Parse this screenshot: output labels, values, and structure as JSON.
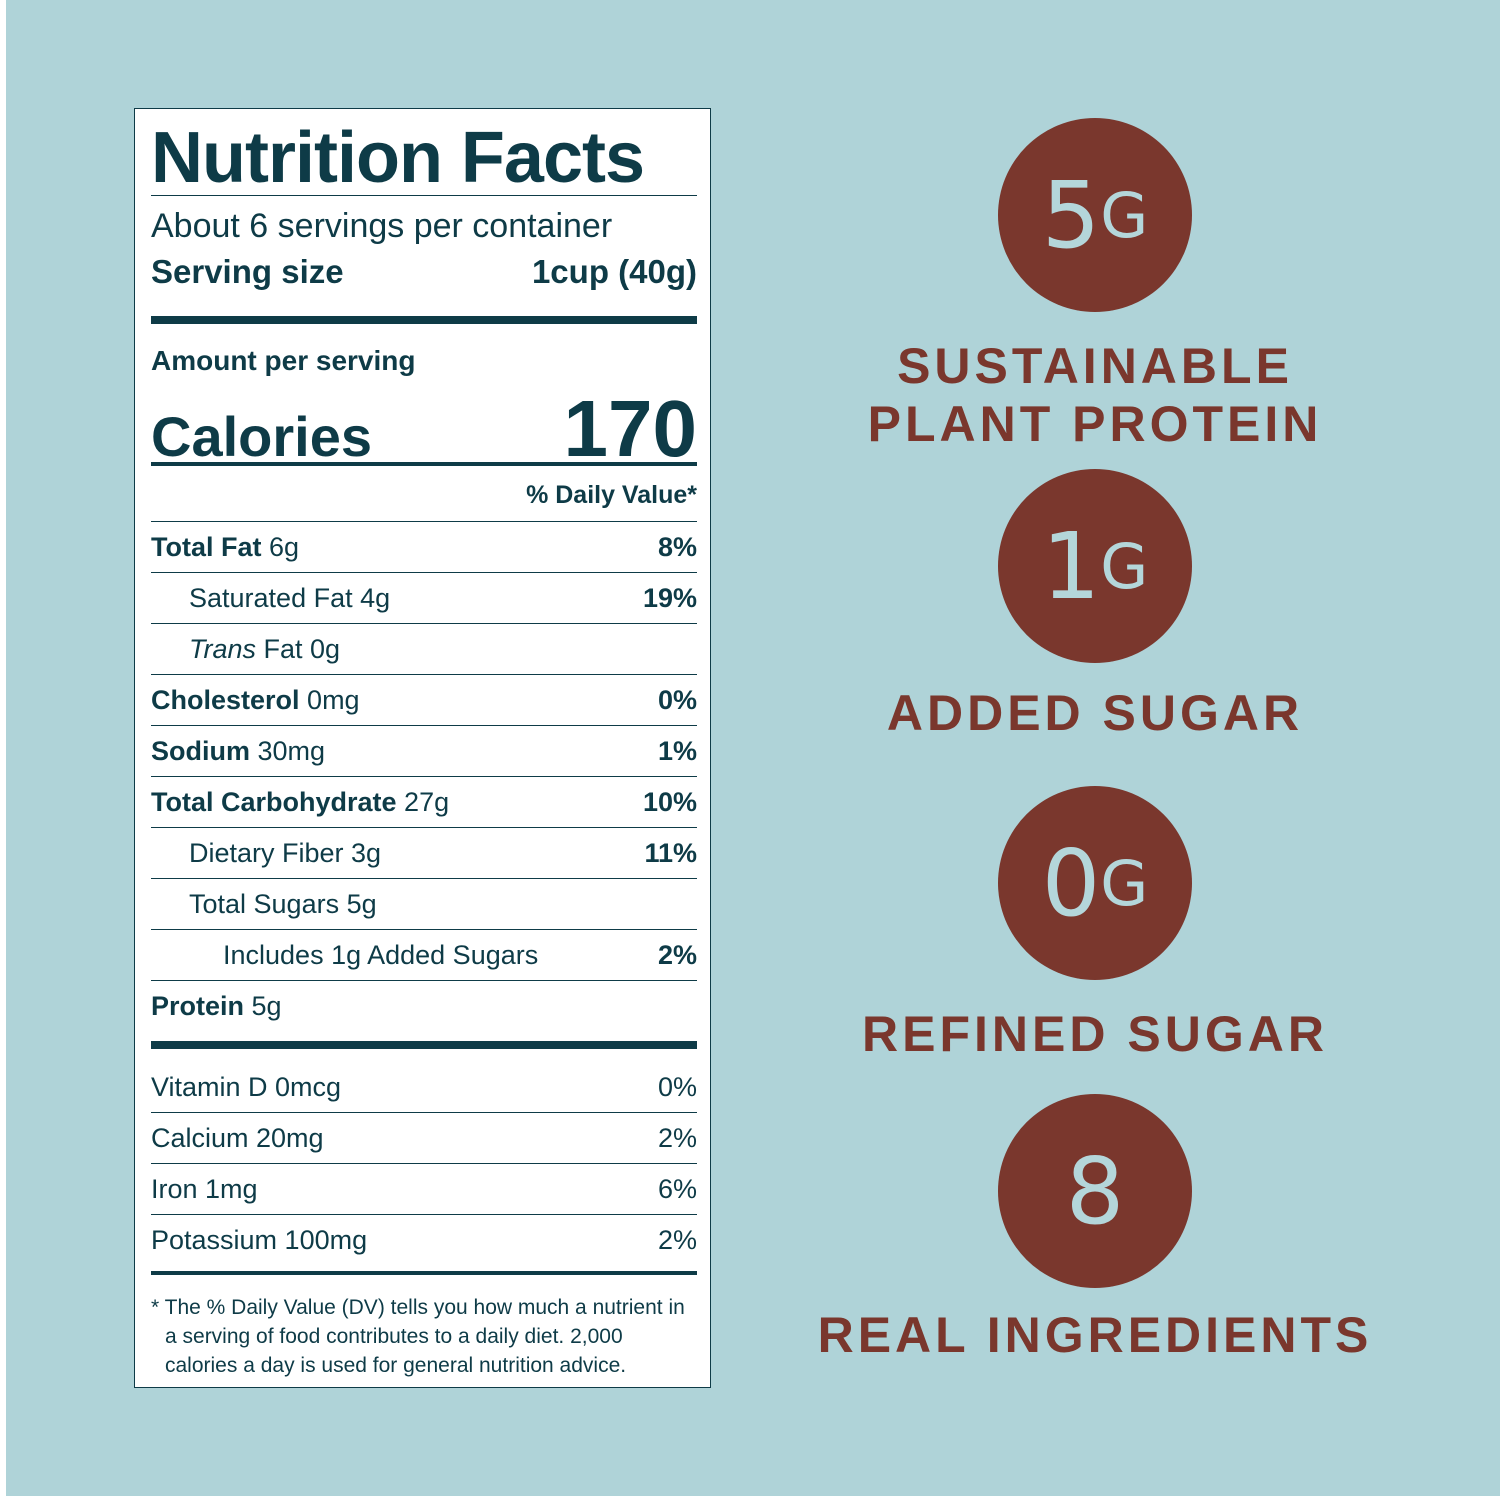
{
  "label": {
    "title": "Nutrition Facts",
    "servings": "About 6 servings per container",
    "serving_size": {
      "label": "Serving size",
      "value": "1cup (40g)"
    },
    "amount_per_serving": "Amount per serving",
    "calories": {
      "label": "Calories",
      "value": "170"
    },
    "dv_header": "% Daily Value*",
    "rows": [
      {
        "name": "Total Fat",
        "amount": "6g",
        "dv": "8%"
      },
      {
        "name": "Saturated Fat 4g",
        "dv": "19%"
      },
      {
        "name_italic": "Trans",
        "name": "Fat 0g"
      },
      {
        "name": "Cholesterol",
        "amount": "0mg",
        "dv": "0%"
      },
      {
        "name": "Sodium",
        "amount": "30mg",
        "dv": "1%"
      },
      {
        "name": "Total Carbohydrate",
        "amount": "27g",
        "dv": "10%"
      },
      {
        "name": "Dietary Fiber 3g",
        "dv": "11%"
      },
      {
        "name": "Total Sugars 5g"
      },
      {
        "name": "Includes 1g Added Sugars",
        "dv": "2%"
      },
      {
        "name": "Protein",
        "amount": "5g"
      }
    ],
    "vitamins": [
      {
        "name": "Vitamin D 0mcg",
        "dv": "0%"
      },
      {
        "name": "Calcium 20mg",
        "dv": "2%"
      },
      {
        "name": "Iron 1mg",
        "dv": "6%"
      },
      {
        "name": "Potassium 100mg",
        "dv": "2%"
      }
    ],
    "footnote": "* The % Daily Value (DV) tells you how much a nutrient in a serving of food contributes to a daily diet. 2,000 calories a day is used for general nutrition advice."
  },
  "badges": [
    {
      "number": "5",
      "unit": "G",
      "caption": [
        "SUSTAINABLE",
        "PLANT PROTEIN"
      ]
    },
    {
      "number": "1",
      "unit": "G",
      "caption": [
        "ADDED SUGAR"
      ]
    },
    {
      "number": "0",
      "unit": "G",
      "caption": [
        "REFINED SUGAR"
      ]
    },
    {
      "number": "8",
      "caption": [
        "REAL INGREDIENTS"
      ]
    }
  ]
}
